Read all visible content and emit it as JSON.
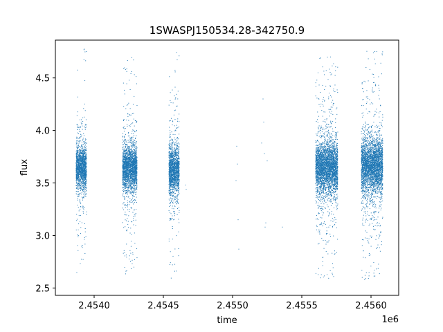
{
  "chart_data": {
    "type": "scatter",
    "title": "1SWASPJ150534.28-342750.9",
    "xlabel": "time",
    "ylabel": "flux",
    "x_offset_label": "1e6",
    "xlim": [
      2453720,
      2456200
    ],
    "ylim": [
      2.43,
      4.86
    ],
    "x_ticks": [
      2453900,
      2454000,
      2454100
    ],
    "x_tick_values": [
      2454000,
      2454500,
      2455000,
      2455500,
      2456000
    ],
    "x_tick_labels": [
      "2.4540",
      "2.4545",
      "2.4550",
      "2.4555",
      "2.4560"
    ],
    "y_tick_values": [
      2.5,
      3.0,
      3.5,
      4.0,
      4.5
    ],
    "y_tick_labels": [
      "2.5",
      "3.0",
      "3.5",
      "4.0",
      "4.5"
    ],
    "grid": false,
    "marker_color": "#1f77b4",
    "observing_seasons": [
      {
        "x_start": 2453870,
        "x_end": 2453945,
        "flux_center": 3.65,
        "flux_core_spread": 0.12,
        "flux_min": 2.55,
        "flux_max": 4.78
      },
      {
        "x_start": 2454205,
        "x_end": 2454310,
        "flux_center": 3.64,
        "flux_core_spread": 0.13,
        "flux_min": 2.57,
        "flux_max": 4.72
      },
      {
        "x_start": 2454540,
        "x_end": 2454615,
        "flux_center": 3.62,
        "flux_core_spread": 0.14,
        "flux_min": 2.56,
        "flux_max": 4.76
      },
      {
        "x_start": 2455600,
        "x_end": 2455760,
        "flux_center": 3.65,
        "flux_core_spread": 0.15,
        "flux_min": 2.55,
        "flux_max": 4.72
      },
      {
        "x_start": 2455930,
        "x_end": 2456085,
        "flux_center": 3.66,
        "flux_core_spread": 0.16,
        "flux_min": 2.55,
        "flux_max": 4.77
      }
    ],
    "sparse_points": [
      {
        "x": 2454660,
        "y": 3.48
      },
      {
        "x": 2454665,
        "y": 3.44
      },
      {
        "x": 2455030,
        "y": 3.85
      },
      {
        "x": 2455035,
        "y": 3.68
      },
      {
        "x": 2455040,
        "y": 3.15
      },
      {
        "x": 2455045,
        "y": 2.87
      },
      {
        "x": 2455025,
        "y": 3.52
      },
      {
        "x": 2455220,
        "y": 4.3
      },
      {
        "x": 2455225,
        "y": 4.08
      },
      {
        "x": 2455230,
        "y": 3.78
      },
      {
        "x": 2455235,
        "y": 3.08
      },
      {
        "x": 2455240,
        "y": 3.12
      },
      {
        "x": 2455250,
        "y": 3.71
      },
      {
        "x": 2455360,
        "y": 3.08
      },
      {
        "x": 2455210,
        "y": 3.88
      }
    ]
  }
}
